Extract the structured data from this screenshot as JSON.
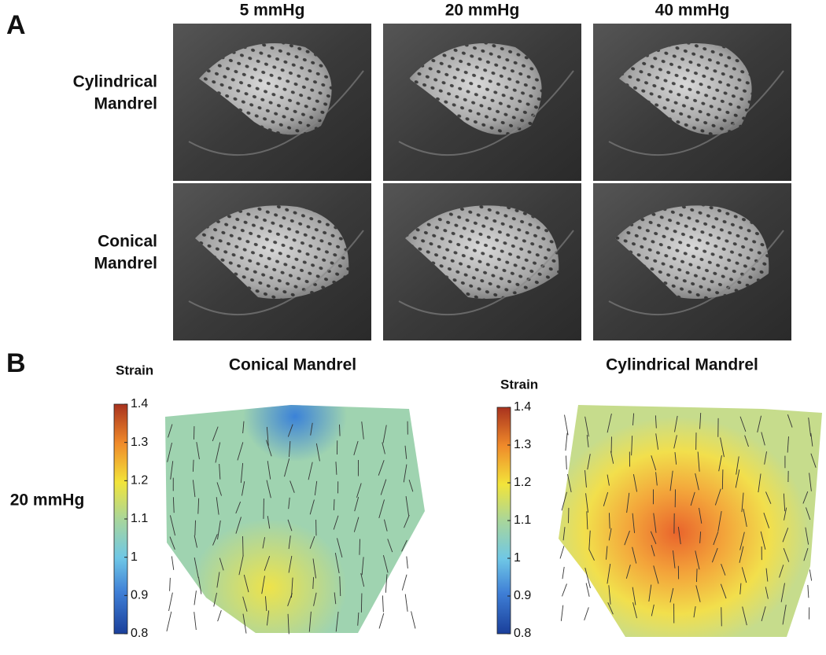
{
  "panel_a": {
    "label": "A",
    "columns": [
      "5 mmHg",
      "20 mmHg",
      "40 mmHg"
    ],
    "rows": [
      [
        "Cylindrical",
        "Mandrel"
      ],
      [
        "Conical",
        "Mandrel"
      ]
    ]
  },
  "panel_b": {
    "label": "B",
    "row_label": "20 mmHg",
    "maps": [
      {
        "title": "Conical Mandrel",
        "colorbar": {
          "label": "Strain",
          "lim": [
            0.8,
            1.4
          ],
          "ticks": [
            0.8,
            0.9,
            1,
            1.1,
            1.2,
            1.3,
            1.4
          ]
        }
      },
      {
        "title": "Cylindrical Mandrel",
        "colorbar": {
          "label": "Strain",
          "lim": [
            0.8,
            1.4
          ],
          "ticks": [
            0.8,
            0.9,
            1,
            1.1,
            1.2,
            1.3,
            1.4
          ]
        }
      }
    ]
  }
}
